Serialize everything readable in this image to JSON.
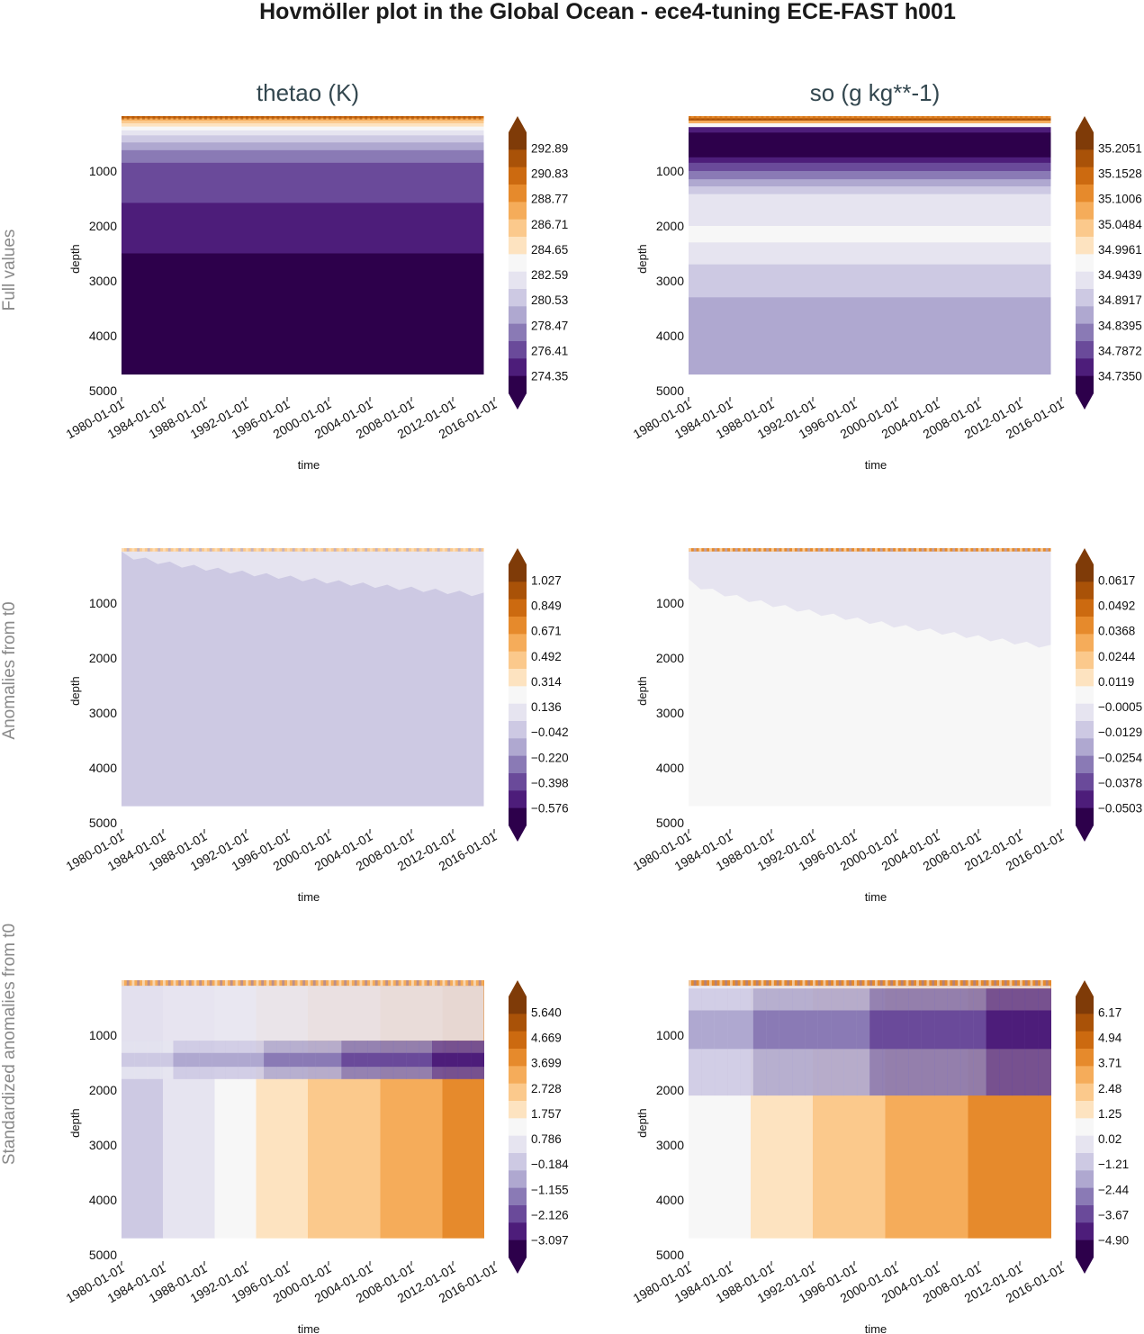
{
  "figure": {
    "title": "Hovmöller plot in the Global Ocean - ece4-tuning ECE-FAST h001",
    "columns": [
      "thetao (K)",
      "so (g kg**-1)"
    ],
    "rows": [
      "Full values",
      "Anomalies from t0",
      "Standardized anomalies from t0"
    ]
  },
  "palette": [
    "#2d004b",
    "#4d1d7a",
    "#6a4a9a",
    "#8a7ab5",
    "#afa8d0",
    "#cdc9e3",
    "#e6e4f0",
    "#f7f7f7",
    "#fde3c0",
    "#fbc98c",
    "#f5ac5a",
    "#e68a2c",
    "#cc6a10",
    "#a95208",
    "#7f3b08"
  ],
  "chart_data": [
    {
      "id": "thetao-full",
      "type": "heatmap",
      "panel_title": "thetao (K)",
      "row_label": "Full values",
      "xlabel": "time",
      "ylabel": "depth",
      "xticks": [
        "1980-01-01",
        "1984-01-01",
        "1988-01-01",
        "1992-01-01",
        "1996-01-01",
        "2000-01-01",
        "2004-01-01",
        "2008-01-01",
        "2012-01-01",
        "2016-01-01"
      ],
      "xlim": [
        1980,
        2016
      ],
      "data_time_range": [
        1980,
        2015.0
      ],
      "yticks": [
        1000,
        2000,
        3000,
        4000,
        5000
      ],
      "ylim": [
        0,
        5000
      ],
      "data_depth_max": 4700,
      "colorbar_ticks": [
        "292.89",
        "290.83",
        "288.77",
        "286.71",
        "284.65",
        "282.59",
        "280.53",
        "278.47",
        "276.41",
        "274.35"
      ],
      "depth_bands": [
        {
          "from": 0,
          "to": 40,
          "color_index": 12
        },
        {
          "from": 40,
          "to": 80,
          "color_index": 10
        },
        {
          "from": 80,
          "to": 130,
          "color_index": 9
        },
        {
          "from": 130,
          "to": 190,
          "color_index": 8
        },
        {
          "from": 190,
          "to": 260,
          "color_index": 7
        },
        {
          "from": 260,
          "to": 350,
          "color_index": 6
        },
        {
          "from": 350,
          "to": 480,
          "color_index": 5
        },
        {
          "from": 480,
          "to": 620,
          "color_index": 4
        },
        {
          "from": 620,
          "to": 850,
          "color_index": 3
        },
        {
          "from": 850,
          "to": 1150,
          "color_index": 2
        },
        {
          "from": 1150,
          "to": 1580,
          "color_index": 2
        },
        {
          "from": 1580,
          "to": 2500,
          "color_index": 1
        },
        {
          "from": 2500,
          "to": 4700,
          "color_index": 0
        }
      ]
    },
    {
      "id": "so-full",
      "type": "heatmap",
      "panel_title": "so (g kg**-1)",
      "row_label": "Full values",
      "xlabel": "time",
      "ylabel": "depth",
      "xticks": [
        "1980-01-01",
        "1984-01-01",
        "1988-01-01",
        "1992-01-01",
        "1996-01-01",
        "2000-01-01",
        "2004-01-01",
        "2008-01-01",
        "2012-01-01",
        "2016-01-01"
      ],
      "xlim": [
        1980,
        2016
      ],
      "data_time_range": [
        1980,
        2015.0
      ],
      "yticks": [
        1000,
        2000,
        3000,
        4000,
        5000
      ],
      "ylim": [
        0,
        5000
      ],
      "data_depth_max": 4700,
      "colorbar_ticks": [
        "35.2051",
        "35.1528",
        "35.1006",
        "35.0484",
        "34.9961",
        "34.9439",
        "34.8917",
        "34.8395",
        "34.7872",
        "34.7350"
      ],
      "depth_bands": [
        {
          "from": 0,
          "to": 40,
          "color_index": 11
        },
        {
          "from": 40,
          "to": 80,
          "color_index": 13
        },
        {
          "from": 80,
          "to": 130,
          "color_index": 10
        },
        {
          "from": 130,
          "to": 200,
          "color_index": 7
        },
        {
          "from": 200,
          "to": 300,
          "color_index": 1
        },
        {
          "from": 300,
          "to": 750,
          "color_index": 0
        },
        {
          "from": 750,
          "to": 850,
          "color_index": 1
        },
        {
          "from": 850,
          "to": 1000,
          "color_index": 2
        },
        {
          "from": 1000,
          "to": 1150,
          "color_index": 3
        },
        {
          "from": 1150,
          "to": 1280,
          "color_index": 4
        },
        {
          "from": 1280,
          "to": 1420,
          "color_index": 5
        },
        {
          "from": 1420,
          "to": 1650,
          "color_index": 6
        },
        {
          "from": 1650,
          "to": 2000,
          "color_index": 6
        },
        {
          "from": 2000,
          "to": 2300,
          "color_index": 7
        },
        {
          "from": 2300,
          "to": 2700,
          "color_index": 6
        },
        {
          "from": 2700,
          "to": 3300,
          "color_index": 5
        },
        {
          "from": 3300,
          "to": 4700,
          "color_index": 4
        }
      ]
    },
    {
      "id": "thetao-anom",
      "type": "heatmap",
      "panel_title": "thetao (K)",
      "row_label": "Anomalies from t0",
      "xlabel": "time",
      "ylabel": "depth",
      "xticks": [
        "1980-01-01",
        "1984-01-01",
        "1988-01-01",
        "1992-01-01",
        "1996-01-01",
        "2000-01-01",
        "2004-01-01",
        "2008-01-01",
        "2012-01-01",
        "2016-01-01"
      ],
      "xlim": [
        1980,
        2016
      ],
      "data_time_range": [
        1980,
        2015.0
      ],
      "yticks": [
        1000,
        2000,
        3000,
        4000,
        5000
      ],
      "ylim": [
        0,
        5000
      ],
      "data_depth_max": 4700,
      "colorbar_ticks": [
        "1.027",
        "0.849",
        "0.671",
        "0.492",
        "0.314",
        "0.136",
        "−0.042",
        "−0.220",
        "−0.398",
        "−0.576"
      ],
      "background_color_index": 5,
      "upper_layer": {
        "color_index": 6,
        "depth_start_year": 1980,
        "depth_start": 100,
        "depth_end_year": 2015,
        "depth_end": 850
      },
      "surface_layer_color_index": 9
    },
    {
      "id": "so-anom",
      "type": "heatmap",
      "panel_title": "so (g kg**-1)",
      "row_label": "Anomalies from t0",
      "xlabel": "time",
      "ylabel": "depth",
      "xticks": [
        "1980-01-01",
        "1984-01-01",
        "1988-01-01",
        "1992-01-01",
        "1996-01-01",
        "2000-01-01",
        "2004-01-01",
        "2008-01-01",
        "2012-01-01",
        "2016-01-01"
      ],
      "xlim": [
        1980,
        2016
      ],
      "data_time_range": [
        1980,
        2015.0
      ],
      "yticks": [
        1000,
        2000,
        3000,
        4000,
        5000
      ],
      "ylim": [
        0,
        5000
      ],
      "data_depth_max": 4700,
      "colorbar_ticks": [
        "0.0617",
        "0.0492",
        "0.0368",
        "0.0244",
        "0.0119",
        "−0.0005",
        "−0.0129",
        "−0.0254",
        "−0.0378",
        "−0.0503"
      ],
      "background_color_index": 7,
      "upper_layer": {
        "color_index": 6,
        "depth_start_year": 1980,
        "depth_start": 600,
        "depth_end_year": 2015,
        "depth_end": 1800
      },
      "surface_layer_color_index": 11
    },
    {
      "id": "thetao-std",
      "type": "heatmap",
      "panel_title": "thetao (K)",
      "row_label": "Standardized anomalies from t0",
      "xlabel": "time",
      "ylabel": "depth",
      "xticks": [
        "1980-01-01",
        "1984-01-01",
        "1988-01-01",
        "1992-01-01",
        "1996-01-01",
        "2000-01-01",
        "2004-01-01",
        "2008-01-01",
        "2012-01-01",
        "2016-01-01"
      ],
      "xlim": [
        1980,
        2016
      ],
      "data_time_range": [
        1980,
        2015.0
      ],
      "yticks": [
        1000,
        2000,
        3000,
        4000,
        5000
      ],
      "ylim": [
        0,
        5000
      ],
      "data_depth_max": 4700,
      "colorbar_ticks": [
        "5.640",
        "4.669",
        "3.699",
        "2.728",
        "1.757",
        "0.786",
        "−0.184",
        "−1.155",
        "−2.126",
        "−3.097"
      ],
      "deep_time_bands": [
        {
          "from": 1980,
          "to": 1984,
          "color_index": 5
        },
        {
          "from": 1984,
          "to": 1989,
          "color_index": 6
        },
        {
          "from": 1989,
          "to": 1993,
          "color_index": 7
        },
        {
          "from": 1993,
          "to": 1998,
          "color_index": 8
        },
        {
          "from": 1998,
          "to": 2005,
          "color_index": 9
        },
        {
          "from": 2005,
          "to": 2011,
          "color_index": 10
        },
        {
          "from": 2011,
          "to": 2015,
          "color_index": 11
        }
      ],
      "mid_layer": {
        "from": 1100,
        "to": 1800,
        "core_depth": 1450,
        "color_index_start": 5,
        "color_index_end": 1
      },
      "upper_layer": {
        "from": 100,
        "to": 1100,
        "color_index": 6
      },
      "surface_layer_color_index": 10
    },
    {
      "id": "so-std",
      "type": "heatmap",
      "panel_title": "so (g kg**-1)",
      "row_label": "Standardized anomalies from t0",
      "xlabel": "time",
      "ylabel": "depth",
      "xticks": [
        "1980-01-01",
        "1984-01-01",
        "1988-01-01",
        "1992-01-01",
        "1996-01-01",
        "2000-01-01",
        "2004-01-01",
        "2008-01-01",
        "2012-01-01",
        "2016-01-01"
      ],
      "xlim": [
        1980,
        2016
      ],
      "data_time_range": [
        1980,
        2015.0
      ],
      "yticks": [
        1000,
        2000,
        3000,
        4000,
        5000
      ],
      "ylim": [
        0,
        5000
      ],
      "data_depth_max": 4700,
      "colorbar_ticks": [
        "6.17",
        "4.94",
        "3.71",
        "2.48",
        "1.25",
        "0.02",
        "−1.21",
        "−2.44",
        "−3.67",
        "−4.90"
      ],
      "deep_time_bands": [
        {
          "from": 1980,
          "to": 1986,
          "color_index": 7
        },
        {
          "from": 1986,
          "to": 1992,
          "color_index": 8
        },
        {
          "from": 1992,
          "to": 1999,
          "color_index": 9
        },
        {
          "from": 1999,
          "to": 2007,
          "color_index": 10
        },
        {
          "from": 2007,
          "to": 2015,
          "color_index": 11
        }
      ],
      "mid_layer": {
        "from": 150,
        "to": 2100,
        "core_depth": 900,
        "color_index_start": 4,
        "color_index_end": 1
      },
      "upper_layer": {
        "from": 100,
        "to": 150,
        "color_index": 6
      },
      "surface_layer_color_index": 11
    }
  ]
}
